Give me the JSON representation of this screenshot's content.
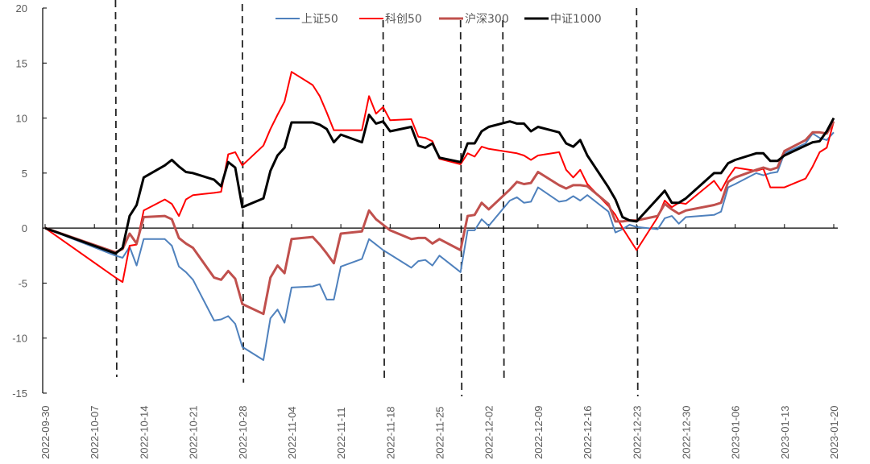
{
  "chart_data": {
    "type": "line",
    "title": "",
    "xlabel": "",
    "ylabel": "",
    "ylim": [
      -15,
      20
    ],
    "yticks": [
      -15,
      -10,
      -5,
      0,
      5,
      10,
      15,
      20
    ],
    "xlim": [
      "2022-09-30",
      "2023-01-20"
    ],
    "xtick_labels": [
      "2022-09-30",
      "2022-10-07",
      "2022-10-14",
      "2022-10-21",
      "2022-10-28",
      "2022-11-04",
      "2022-11-11",
      "2022-11-18",
      "2022-11-25",
      "2022-12-02",
      "2022-12-09",
      "2022-12-16",
      "2022-12-23",
      "2022-12-30",
      "2023-01-06",
      "2023-01-13",
      "2023-01-20"
    ],
    "grid": false,
    "legend_placement": "top",
    "vertical_dashed_lines": [
      "2022-10-10",
      "2022-10-28",
      "2022-11-17",
      "2022-11-28",
      "2022-12-04",
      "2022-12-23"
    ],
    "x": [
      "2022-09-30",
      "2022-10-10",
      "2022-10-11",
      "2022-10-12",
      "2022-10-13",
      "2022-10-14",
      "2022-10-17",
      "2022-10-18",
      "2022-10-19",
      "2022-10-20",
      "2022-10-21",
      "2022-10-24",
      "2022-10-25",
      "2022-10-26",
      "2022-10-27",
      "2022-10-28",
      "2022-10-31",
      "2022-11-01",
      "2022-11-02",
      "2022-11-03",
      "2022-11-04",
      "2022-11-07",
      "2022-11-08",
      "2022-11-09",
      "2022-11-10",
      "2022-11-11",
      "2022-11-14",
      "2022-11-15",
      "2022-11-16",
      "2022-11-17",
      "2022-11-18",
      "2022-11-21",
      "2022-11-22",
      "2022-11-23",
      "2022-11-24",
      "2022-11-25",
      "2022-11-28",
      "2022-11-29",
      "2022-11-30",
      "2022-12-01",
      "2022-12-02",
      "2022-12-05",
      "2022-12-06",
      "2022-12-07",
      "2022-12-08",
      "2022-12-09",
      "2022-12-12",
      "2022-12-13",
      "2022-12-14",
      "2022-12-15",
      "2022-12-16",
      "2022-12-19",
      "2022-12-20",
      "2022-12-21",
      "2022-12-22",
      "2022-12-23",
      "2022-12-26",
      "2022-12-27",
      "2022-12-28",
      "2022-12-29",
      "2022-12-30",
      "2023-01-03",
      "2023-01-04",
      "2023-01-05",
      "2023-01-06",
      "2023-01-09",
      "2023-01-10",
      "2023-01-11",
      "2023-01-12",
      "2023-01-13",
      "2023-01-16",
      "2023-01-17",
      "2023-01-18",
      "2023-01-19",
      "2023-01-20"
    ],
    "series": [
      {
        "name": "上证50",
        "color": "#4f81bd",
        "width": 2,
        "values": [
          0,
          -2.5,
          -2.7,
          -1.7,
          -3.4,
          -1.0,
          -1.0,
          -1.6,
          -3.5,
          -4.0,
          -4.7,
          -8.4,
          -8.3,
          -8.0,
          -8.7,
          -10.8,
          -12.0,
          -8.2,
          -7.4,
          -8.6,
          -5.4,
          -5.3,
          -5.1,
          -6.5,
          -6.5,
          -3.5,
          -2.8,
          -1.0,
          -1.5,
          -2.0,
          -2.4,
          -3.6,
          -3.0,
          -2.9,
          -3.4,
          -2.5,
          -4.0,
          -0.2,
          -0.2,
          0.8,
          0.2,
          2.5,
          2.8,
          2.3,
          2.4,
          3.7,
          2.4,
          2.5,
          2.9,
          2.5,
          3.0,
          1.5,
          -0.4,
          -0.1,
          0.3,
          0.1,
          -0.1,
          0.9,
          1.1,
          0.4,
          1.0,
          1.2,
          1.5,
          3.7,
          4.0,
          5.0,
          4.8,
          5.0,
          5.1,
          6.8,
          7.7,
          8.6,
          8.2,
          8.0,
          8.7
        ]
      },
      {
        "name": "科创50",
        "color": "#ff0000",
        "width": 2,
        "values": [
          0,
          -4.5,
          -4.9,
          -1.6,
          -1.5,
          1.6,
          2.6,
          2.2,
          1.1,
          2.6,
          3.0,
          3.2,
          3.3,
          6.7,
          6.9,
          5.7,
          7.5,
          9.0,
          10.3,
          11.5,
          14.2,
          13.0,
          12.0,
          10.5,
          8.9,
          8.9,
          8.9,
          12.0,
          10.4,
          11.0,
          9.8,
          9.9,
          8.3,
          8.2,
          7.9,
          6.3,
          5.8,
          6.8,
          6.5,
          7.4,
          7.2,
          6.9,
          6.8,
          6.6,
          6.2,
          6.6,
          6.9,
          5.3,
          4.6,
          5.3,
          4.0,
          2.0,
          1.2,
          0.0,
          -1.0,
          -2.0,
          1.0,
          2.5,
          1.9,
          2.3,
          2.2,
          4.3,
          3.4,
          4.6,
          5.5,
          5.2,
          5.4,
          3.7,
          3.7,
          3.7,
          4.5,
          5.6,
          6.9,
          7.3,
          9.7
        ]
      },
      {
        "name": "沪深300",
        "color": "#c0504d",
        "width": 3,
        "values": [
          0,
          -2.2,
          -1.9,
          -0.5,
          -1.4,
          1.0,
          1.1,
          0.8,
          -0.9,
          -1.4,
          -1.8,
          -4.5,
          -4.7,
          -3.9,
          -4.6,
          -6.9,
          -7.8,
          -4.5,
          -3.4,
          -4.1,
          -1.0,
          -0.8,
          -1.5,
          -2.3,
          -3.2,
          -0.5,
          -0.3,
          1.6,
          0.8,
          0.3,
          -0.2,
          -1.0,
          -0.9,
          -0.9,
          -1.4,
          -1.0,
          -2.0,
          1.1,
          1.2,
          2.3,
          1.7,
          3.5,
          4.2,
          4.0,
          4.1,
          5.1,
          3.9,
          3.6,
          3.9,
          3.9,
          3.8,
          2.2,
          0.6,
          0.6,
          0.7,
          0.7,
          1.1,
          2.2,
          1.7,
          1.3,
          1.6,
          2.1,
          2.3,
          4.2,
          4.6,
          5.3,
          5.5,
          5.3,
          5.5,
          7.0,
          8.0,
          8.7,
          8.7,
          8.6,
          9.7
        ]
      },
      {
        "name": "中证1000",
        "color": "#000000",
        "width": 3,
        "values": [
          0,
          -2.3,
          -1.8,
          1.1,
          2.1,
          4.6,
          5.7,
          6.2,
          5.6,
          5.1,
          5.0,
          4.4,
          3.8,
          6.0,
          5.5,
          1.9,
          2.7,
          5.2,
          6.6,
          7.3,
          9.6,
          9.6,
          9.4,
          9.0,
          7.8,
          8.5,
          7.8,
          10.3,
          9.5,
          9.7,
          8.8,
          9.2,
          7.5,
          7.3,
          7.7,
          6.4,
          6.0,
          7.7,
          7.7,
          8.8,
          9.2,
          9.7,
          9.5,
          9.5,
          8.8,
          9.2,
          8.7,
          7.7,
          7.4,
          8.0,
          6.6,
          3.7,
          2.6,
          1.0,
          0.7,
          0.6,
          2.7,
          3.4,
          2.3,
          2.3,
          2.7,
          5.0,
          5.0,
          5.9,
          6.2,
          6.8,
          6.8,
          6.1,
          6.1,
          6.6,
          7.5,
          7.8,
          7.9,
          8.8,
          10.0
        ]
      }
    ]
  }
}
